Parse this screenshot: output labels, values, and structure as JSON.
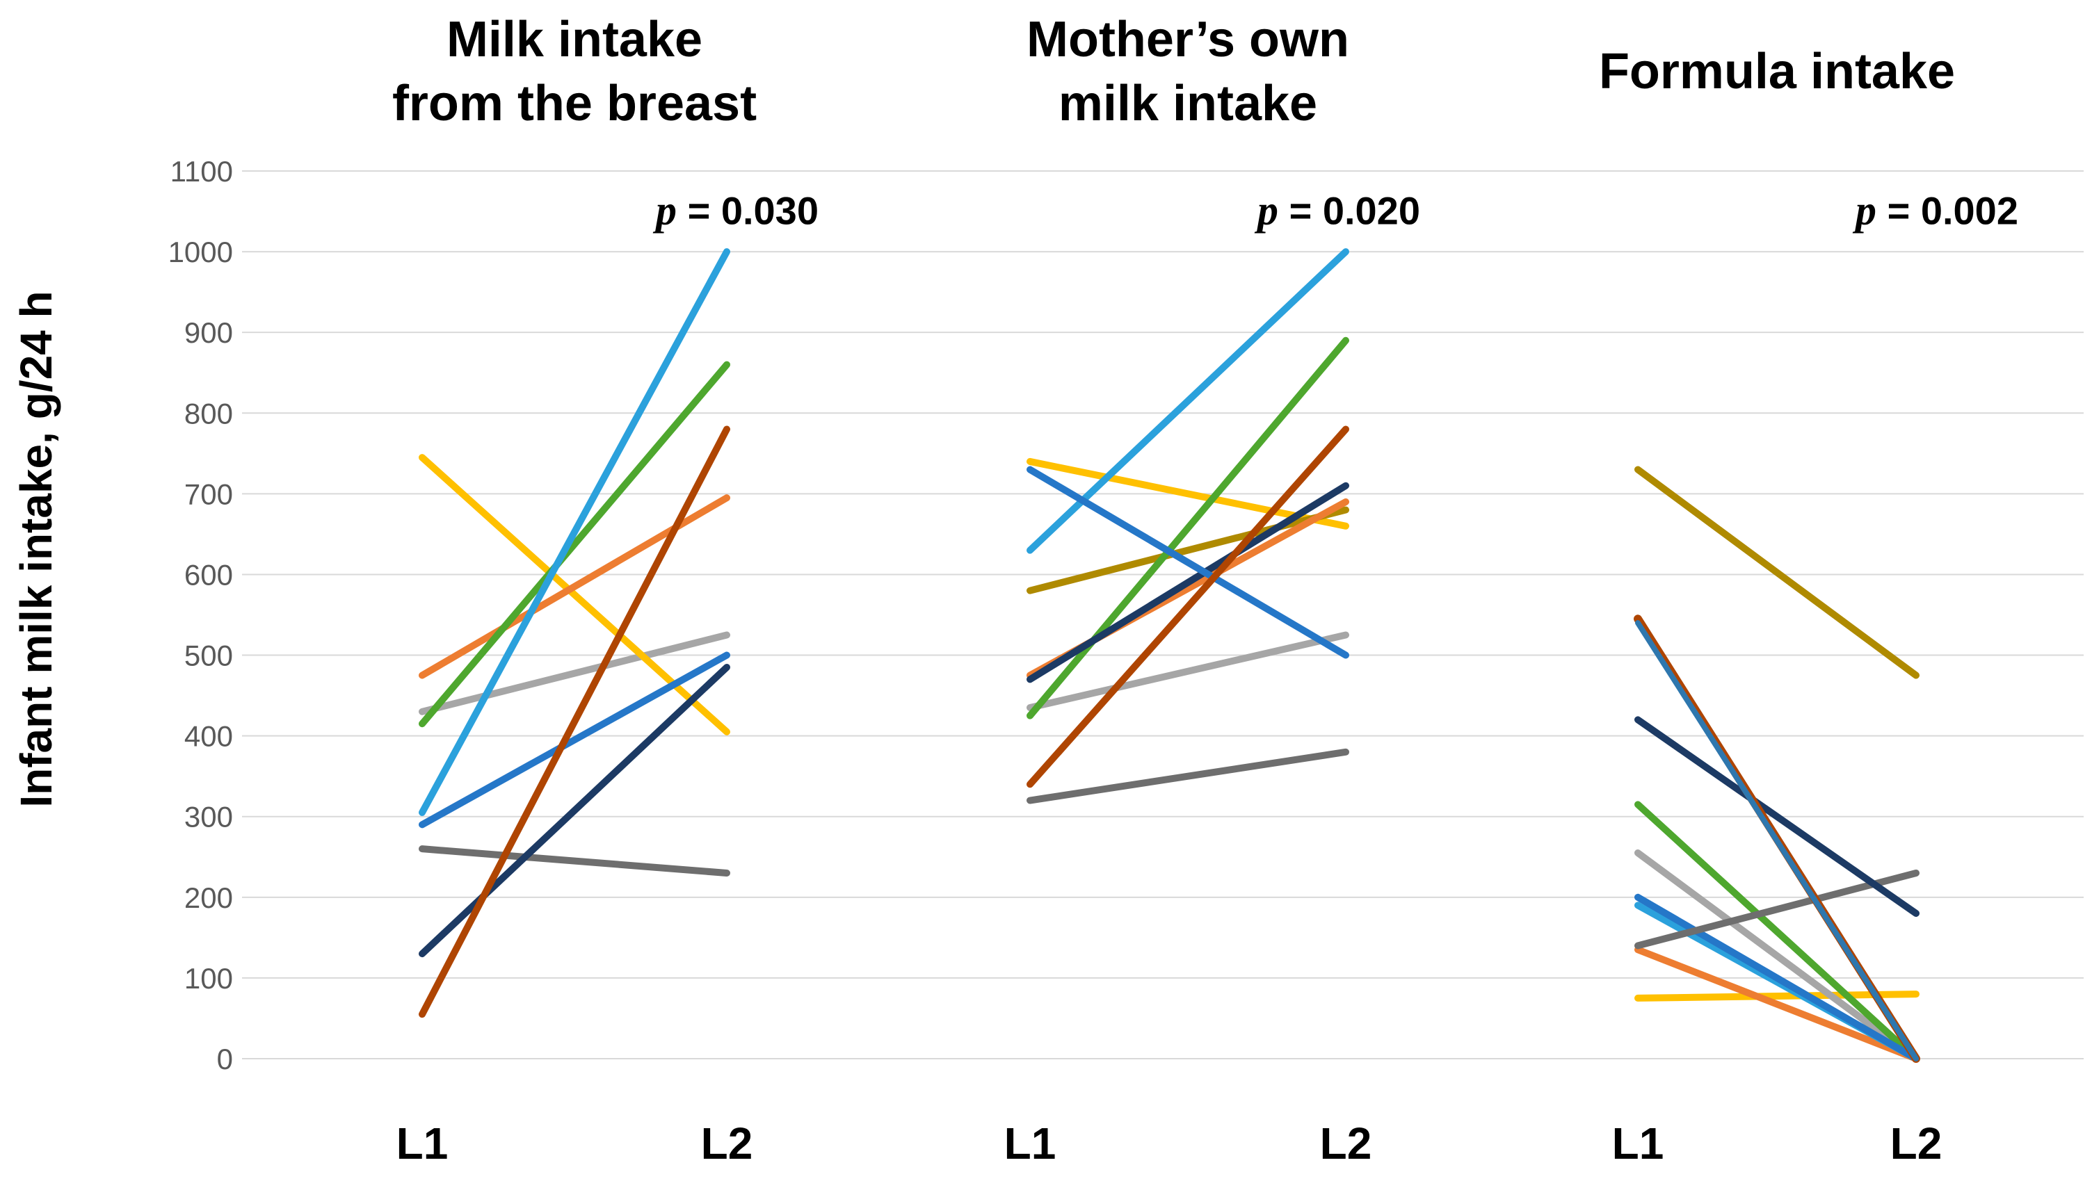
{
  "chart_data": {
    "type": "line",
    "subtype": "paired-slope-graph",
    "title": "",
    "ylabel": "Infant milk intake, g/24 h",
    "ylim": [
      0,
      1100
    ],
    "ytick_step": 100,
    "yticks": [
      1100,
      1000,
      900,
      800,
      700,
      600,
      500,
      400,
      300,
      200,
      100,
      0
    ],
    "categories": [
      "L1",
      "L2"
    ],
    "grid": true,
    "legend": "none",
    "axis_text_color": "#595959",
    "grid_color": "#D9D9D9",
    "palette": {
      "yellow": "#FFC000",
      "orange": "#ED7D31",
      "light_gray": "#A6A6A6",
      "green": "#4EA72E",
      "sky_blue": "#2BA1DC",
      "blue": "#2577C8",
      "dark_gray": "#6E6E6E",
      "navy": "#1C3A64",
      "dark_red": "#AF4502",
      "olive": "#AF8A00",
      "steel_blue": "#2E77AE"
    },
    "panels": [
      {
        "title_lines": [
          "Milk intake",
          "from the breast"
        ],
        "p_label": "p = 0.030",
        "p_value": 0.03,
        "series": [
          {
            "color": "light_gray",
            "values": [
              430,
              525
            ]
          },
          {
            "color": "dark_gray",
            "values": [
              260,
              230
            ]
          },
          {
            "color": "yellow",
            "values": [
              745,
              405
            ]
          },
          {
            "color": "orange",
            "values": [
              475,
              695
            ]
          },
          {
            "color": "green",
            "values": [
              415,
              860
            ]
          },
          {
            "color": "sky_blue",
            "values": [
              305,
              1000
            ]
          },
          {
            "color": "blue",
            "values": [
              290,
              500
            ]
          },
          {
            "color": "navy",
            "values": [
              130,
              485
            ]
          },
          {
            "color": "dark_red",
            "values": [
              55,
              780
            ]
          }
        ]
      },
      {
        "title_lines": [
          "Mother’s own",
          "milk intake"
        ],
        "p_label": "p = 0.020",
        "p_value": 0.02,
        "series": [
          {
            "color": "light_gray",
            "values": [
              435,
              525
            ]
          },
          {
            "color": "dark_gray",
            "values": [
              320,
              380
            ]
          },
          {
            "color": "yellow",
            "values": [
              740,
              660
            ]
          },
          {
            "color": "olive",
            "values": [
              580,
              680
            ]
          },
          {
            "color": "orange",
            "values": [
              475,
              690
            ]
          },
          {
            "color": "green",
            "values": [
              425,
              890
            ]
          },
          {
            "color": "navy",
            "values": [
              470,
              710
            ]
          },
          {
            "color": "sky_blue",
            "values": [
              630,
              1000
            ]
          },
          {
            "color": "blue",
            "values": [
              730,
              500
            ]
          },
          {
            "color": "dark_red",
            "values": [
              340,
              780
            ]
          }
        ]
      },
      {
        "title_lines": [
          "Formula intake"
        ],
        "p_label": "p = 0.002",
        "p_value": 0.002,
        "series": [
          {
            "color": "yellow",
            "values": [
              75,
              80
            ]
          },
          {
            "color": "orange",
            "values": [
              135,
              0
            ]
          },
          {
            "color": "light_gray",
            "values": [
              255,
              0
            ]
          },
          {
            "color": "green",
            "values": [
              315,
              0
            ]
          },
          {
            "color": "sky_blue",
            "values": [
              190,
              0
            ]
          },
          {
            "color": "blue",
            "values": [
              200,
              0
            ]
          },
          {
            "color": "dark_gray",
            "values": [
              140,
              230
            ]
          },
          {
            "color": "navy",
            "values": [
              420,
              180
            ]
          },
          {
            "color": "olive",
            "values": [
              730,
              475
            ]
          },
          {
            "color": "dark_red",
            "values": [
              545,
              0
            ],
            "width": 12
          },
          {
            "color": "steel_blue",
            "values": [
              540,
              0
            ],
            "width": 8
          }
        ]
      }
    ]
  }
}
